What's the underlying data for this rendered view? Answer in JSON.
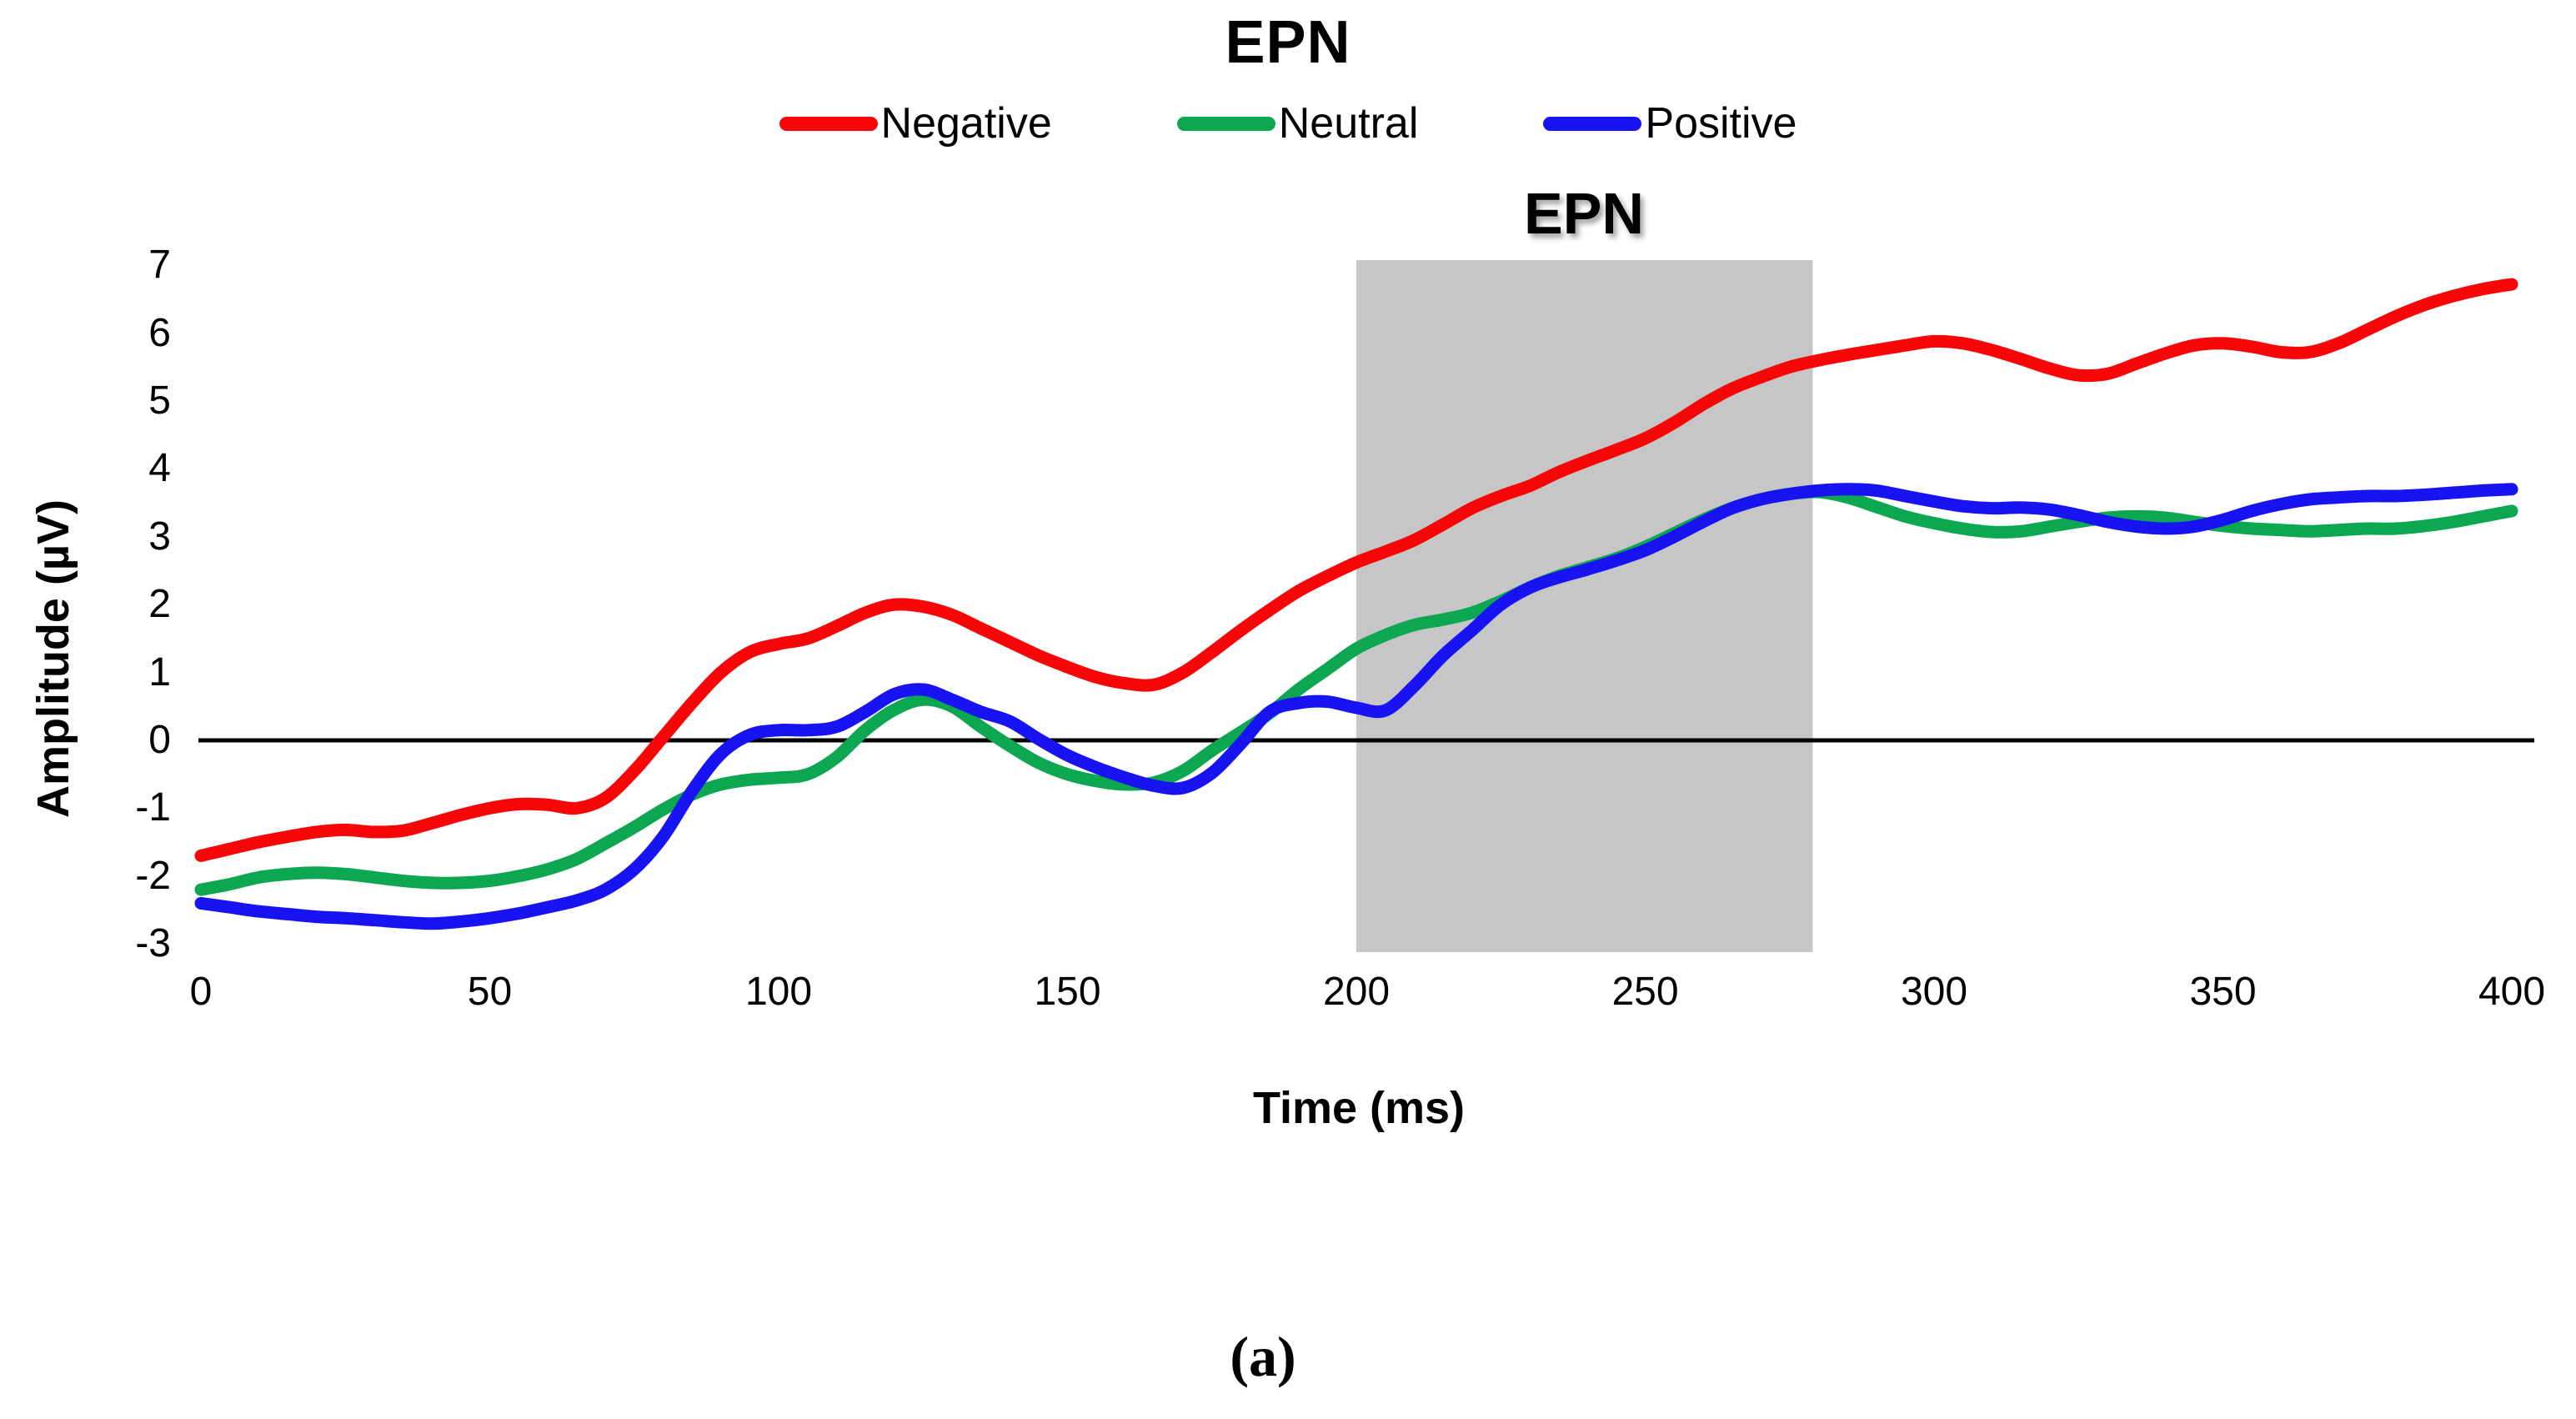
{
  "title": "EPN",
  "region_label": "EPN",
  "caption": "(a)",
  "legend": [
    {
      "label": "Negative",
      "color": "#f80508"
    },
    {
      "label": "Neutral",
      "color": "#0ca750"
    },
    {
      "label": "Positive",
      "color": "#1813f2"
    }
  ],
  "colors": {
    "negative": "#f80508",
    "neutral": "#0ca750",
    "positive": "#1813f2",
    "highlight": "#c6c6c6",
    "zero_line": "#000000"
  },
  "chart_data": {
    "type": "line",
    "title": "EPN",
    "xlabel": "Time (ms)",
    "ylabel": "Amplitude (µV)",
    "xlim": [
      0,
      400
    ],
    "ylim": [
      -3,
      7
    ],
    "x_ticks": [
      0,
      50,
      100,
      150,
      200,
      250,
      300,
      350,
      400
    ],
    "y_ticks": [
      7,
      6,
      5,
      4,
      3,
      2,
      1,
      0,
      -1,
      -2,
      -3
    ],
    "grid": false,
    "zero_line": true,
    "legend_position": "top",
    "x_step_ms": 5,
    "highlight_region": {
      "label": "EPN",
      "x_start": 200,
      "x_end": 279
    },
    "series": [
      {
        "name": "Negative",
        "color": "#f80508",
        "values": [
          -1.7,
          -1.6,
          -1.5,
          -1.42,
          -1.35,
          -1.32,
          -1.35,
          -1.33,
          -1.22,
          -1.1,
          -1.0,
          -0.94,
          -0.95,
          -1.0,
          -0.85,
          -0.45,
          0.05,
          0.55,
          1.0,
          1.3,
          1.42,
          1.5,
          1.68,
          1.88,
          2.0,
          1.97,
          1.85,
          1.65,
          1.45,
          1.25,
          1.08,
          0.93,
          0.84,
          0.82,
          1.0,
          1.3,
          1.62,
          1.92,
          2.2,
          2.42,
          2.62,
          2.78,
          2.95,
          3.18,
          3.42,
          3.6,
          3.75,
          3.95,
          4.12,
          4.28,
          4.45,
          4.68,
          4.95,
          5.18,
          5.35,
          5.5,
          5.6,
          5.68,
          5.75,
          5.82,
          5.88,
          5.85,
          5.75,
          5.62,
          5.48,
          5.38,
          5.4,
          5.55,
          5.7,
          5.82,
          5.85,
          5.8,
          5.72,
          5.72,
          5.85,
          6.05,
          6.25,
          6.42,
          6.55,
          6.65,
          6.72
        ]
      },
      {
        "name": "Neutral",
        "color": "#0ca750",
        "values": [
          -2.2,
          -2.12,
          -2.02,
          -1.97,
          -1.95,
          -1.97,
          -2.02,
          -2.07,
          -2.1,
          -2.1,
          -2.07,
          -2.0,
          -1.9,
          -1.75,
          -1.52,
          -1.28,
          -1.02,
          -0.8,
          -0.65,
          -0.58,
          -0.55,
          -0.5,
          -0.25,
          0.15,
          0.45,
          0.6,
          0.5,
          0.2,
          -0.08,
          -0.33,
          -0.5,
          -0.6,
          -0.65,
          -0.62,
          -0.45,
          -0.15,
          0.12,
          0.4,
          0.75,
          1.05,
          1.35,
          1.55,
          1.7,
          1.78,
          1.88,
          2.05,
          2.25,
          2.42,
          2.55,
          2.68,
          2.85,
          3.05,
          3.25,
          3.42,
          3.55,
          3.63,
          3.66,
          3.58,
          3.44,
          3.3,
          3.2,
          3.12,
          3.07,
          3.08,
          3.15,
          3.22,
          3.28,
          3.3,
          3.28,
          3.22,
          3.16,
          3.12,
          3.1,
          3.08,
          3.1,
          3.12,
          3.12,
          3.16,
          3.22,
          3.3,
          3.38
        ]
      },
      {
        "name": "Positive",
        "color": "#1813f2",
        "values": [
          -2.4,
          -2.46,
          -2.52,
          -2.56,
          -2.6,
          -2.62,
          -2.65,
          -2.68,
          -2.7,
          -2.67,
          -2.62,
          -2.55,
          -2.46,
          -2.36,
          -2.2,
          -1.9,
          -1.42,
          -0.75,
          -0.2,
          0.08,
          0.15,
          0.15,
          0.2,
          0.42,
          0.68,
          0.75,
          0.6,
          0.42,
          0.28,
          0.02,
          -0.22,
          -0.4,
          -0.55,
          -0.67,
          -0.7,
          -0.48,
          -0.05,
          0.42,
          0.55,
          0.57,
          0.48,
          0.44,
          0.8,
          1.25,
          1.62,
          2.0,
          2.25,
          2.4,
          2.52,
          2.65,
          2.8,
          3.0,
          3.22,
          3.42,
          3.55,
          3.63,
          3.68,
          3.7,
          3.68,
          3.6,
          3.52,
          3.45,
          3.42,
          3.43,
          3.4,
          3.32,
          3.22,
          3.15,
          3.12,
          3.15,
          3.25,
          3.38,
          3.48,
          3.55,
          3.58,
          3.6,
          3.6,
          3.62,
          3.65,
          3.68,
          3.7
        ]
      }
    ]
  }
}
